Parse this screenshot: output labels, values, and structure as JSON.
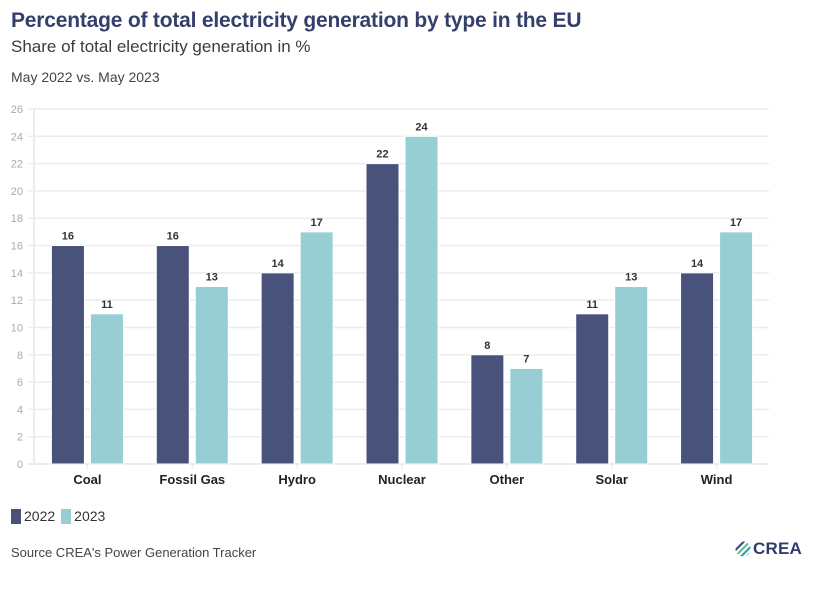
{
  "header": {
    "title": "Percentage of total electricity generation by type in the EU",
    "subtitle": "Share of total electricity generation in %",
    "period": "May 2022 vs. May 2023"
  },
  "legend": {
    "items": [
      {
        "label": "2022",
        "color": "#48527a"
      },
      {
        "label": "2023",
        "color": "#96ced4"
      }
    ]
  },
  "footer": {
    "source": "Source CREA's Power Generation Tracker",
    "logo_text": "CREA"
  },
  "chart_data": {
    "type": "bar",
    "title": "Percentage of total electricity generation by type in the EU",
    "subtitle": "Share of total electricity generation in %",
    "xlabel": "",
    "ylabel": "",
    "categories": [
      "Coal",
      "Fossil Gas",
      "Hydro",
      "Nuclear",
      "Other",
      "Solar",
      "Wind"
    ],
    "series": [
      {
        "name": "2022",
        "color": "#48527a",
        "values": [
          16,
          16,
          14,
          22,
          8,
          11,
          14
        ]
      },
      {
        "name": "2023",
        "color": "#96ced4",
        "values": [
          11,
          13,
          17,
          24,
          7,
          13,
          17
        ]
      }
    ],
    "ylim": [
      0,
      26
    ],
    "yticks": [
      0,
      2,
      4,
      6,
      8,
      10,
      12,
      14,
      16,
      18,
      20,
      22,
      24,
      26
    ],
    "grid": true,
    "legend_position": "bottom-left",
    "data_labels": true
  }
}
